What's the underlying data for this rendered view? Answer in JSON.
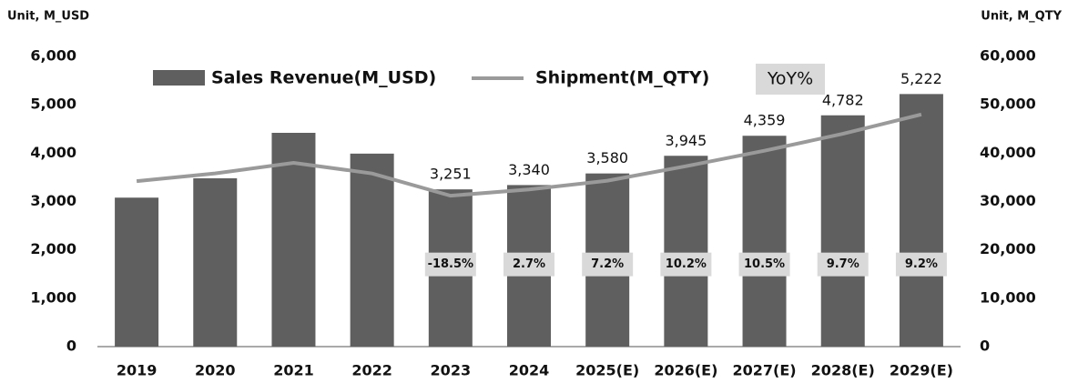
{
  "chart_data": {
    "type": "bar",
    "y_axis_label": "Unit, M_USD",
    "y2_axis_label": "Unit, M_QTY",
    "categories": [
      "2019",
      "2020",
      "2021",
      "2022",
      "2023",
      "2024",
      "2025(E)",
      "2026(E)",
      "2027(E)",
      "2028(E)",
      "2029(E)"
    ],
    "series": [
      {
        "name": "Sales Revenue(M_USD)",
        "type": "bar",
        "color": "#5f5f5f",
        "values": [
          3080,
          3480,
          4420,
          3990,
          3251,
          3340,
          3580,
          3945,
          4359,
          4782,
          5222
        ],
        "value_labels": [
          null,
          null,
          null,
          null,
          "3,251",
          "3,340",
          "3,580",
          "3,945",
          "4,359",
          "4,782",
          "5,222"
        ]
      },
      {
        "name": "Shipment(M_QTY)",
        "type": "line",
        "axis": "y2",
        "color": "#9a9a9a",
        "values": [
          34200,
          35800,
          38000,
          35800,
          31200,
          32500,
          34300,
          37300,
          40500,
          44000,
          48000
        ]
      },
      {
        "name": "YoY%",
        "type": "label",
        "color": "#d9d9d9",
        "values": [
          null,
          null,
          null,
          null,
          -18.5,
          2.7,
          7.2,
          10.2,
          10.5,
          9.7,
          9.2
        ],
        "value_labels": [
          null,
          null,
          null,
          null,
          "-18.5%",
          "2.7%",
          "7.2%",
          "10.2%",
          "10.5%",
          "9.7%",
          "9.2%"
        ]
      }
    ],
    "ylim": [
      0,
      6000
    ],
    "yticks": [
      0,
      {
        "value": 1000,
        "label": "1,000"
      },
      {
        "value": 2000,
        "label": "2,000"
      },
      {
        "value": 3000,
        "label": "3,000"
      },
      {
        "value": 4000,
        "label": "4,000"
      },
      {
        "value": 5000,
        "label": "5,000"
      },
      {
        "value": 6000,
        "label": "6,000"
      }
    ],
    "y2lim": [
      0,
      60000
    ],
    "y2ticks": [
      0,
      {
        "value": 10000,
        "label": "10,000"
      },
      {
        "value": 20000,
        "label": "20,000"
      },
      {
        "value": 30000,
        "label": "30,000"
      },
      {
        "value": 40000,
        "label": "40,000"
      },
      {
        "value": 50000,
        "label": "50,000"
      },
      {
        "value": 60000,
        "label": "60,000"
      }
    ],
    "grid": false,
    "legend": "top"
  }
}
